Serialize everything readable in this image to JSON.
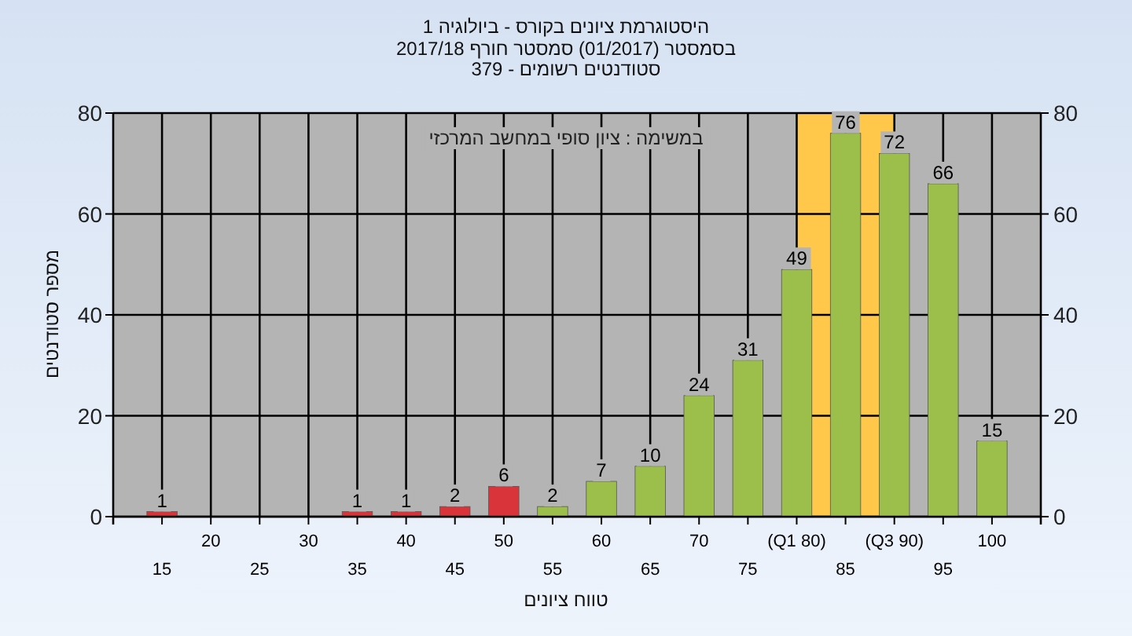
{
  "chart_data": {
    "type": "bar",
    "title": "היסטוגרמת ציונים בקורס - ביולוגיה 1",
    "subtitle": [
      "בסמסטר (01/2017) סמסטר חורף 2017/18",
      "סטודנטים רשומים - 379"
    ],
    "xlabel": "טווח ציונים",
    "ylabel": "מספר סטודנטים",
    "annotations": [
      "במשימה : ציון סופי במחשב המרכזי"
    ],
    "categories": [
      "15",
      "20",
      "25",
      "30",
      "35",
      "40",
      "45",
      "50",
      "55",
      "60",
      "65",
      "70",
      "75",
      "(Q1 80)",
      "85",
      "(Q3 90)",
      "95",
      "100"
    ],
    "values": [
      1,
      0,
      0,
      0,
      1,
      1,
      2,
      6,
      2,
      7,
      10,
      24,
      31,
      49,
      76,
      72,
      66,
      15
    ],
    "colors": [
      "#d9343a",
      "#d9343a",
      "#d9343a",
      "#d9343a",
      "#d9343a",
      "#d9343a",
      "#d9343a",
      "#d9343a",
      "#9bbf4a",
      "#9bbf4a",
      "#9bbf4a",
      "#9bbf4a",
      "#9bbf4a",
      "#9bbf4a",
      "#9bbf4a",
      "#9bbf4a",
      "#9bbf4a",
      "#9bbf4a"
    ],
    "value_labels": [
      "1",
      null,
      null,
      null,
      "1",
      "1",
      "2",
      "6",
      "2",
      "7",
      "10",
      "24",
      "31",
      "49",
      "76",
      "72",
      "66",
      "15"
    ],
    "bands": [
      {
        "axis": "x",
        "from": "(Q1 80)",
        "to": "(Q3 90)",
        "color": "#ffc84a"
      }
    ],
    "ylim": [
      0,
      80
    ],
    "yticks": [
      0,
      20,
      40,
      60,
      80
    ],
    "y2lim": [
      0,
      80
    ],
    "y2ticks": [
      0,
      20,
      40,
      60,
      80
    ],
    "grid": true
  }
}
